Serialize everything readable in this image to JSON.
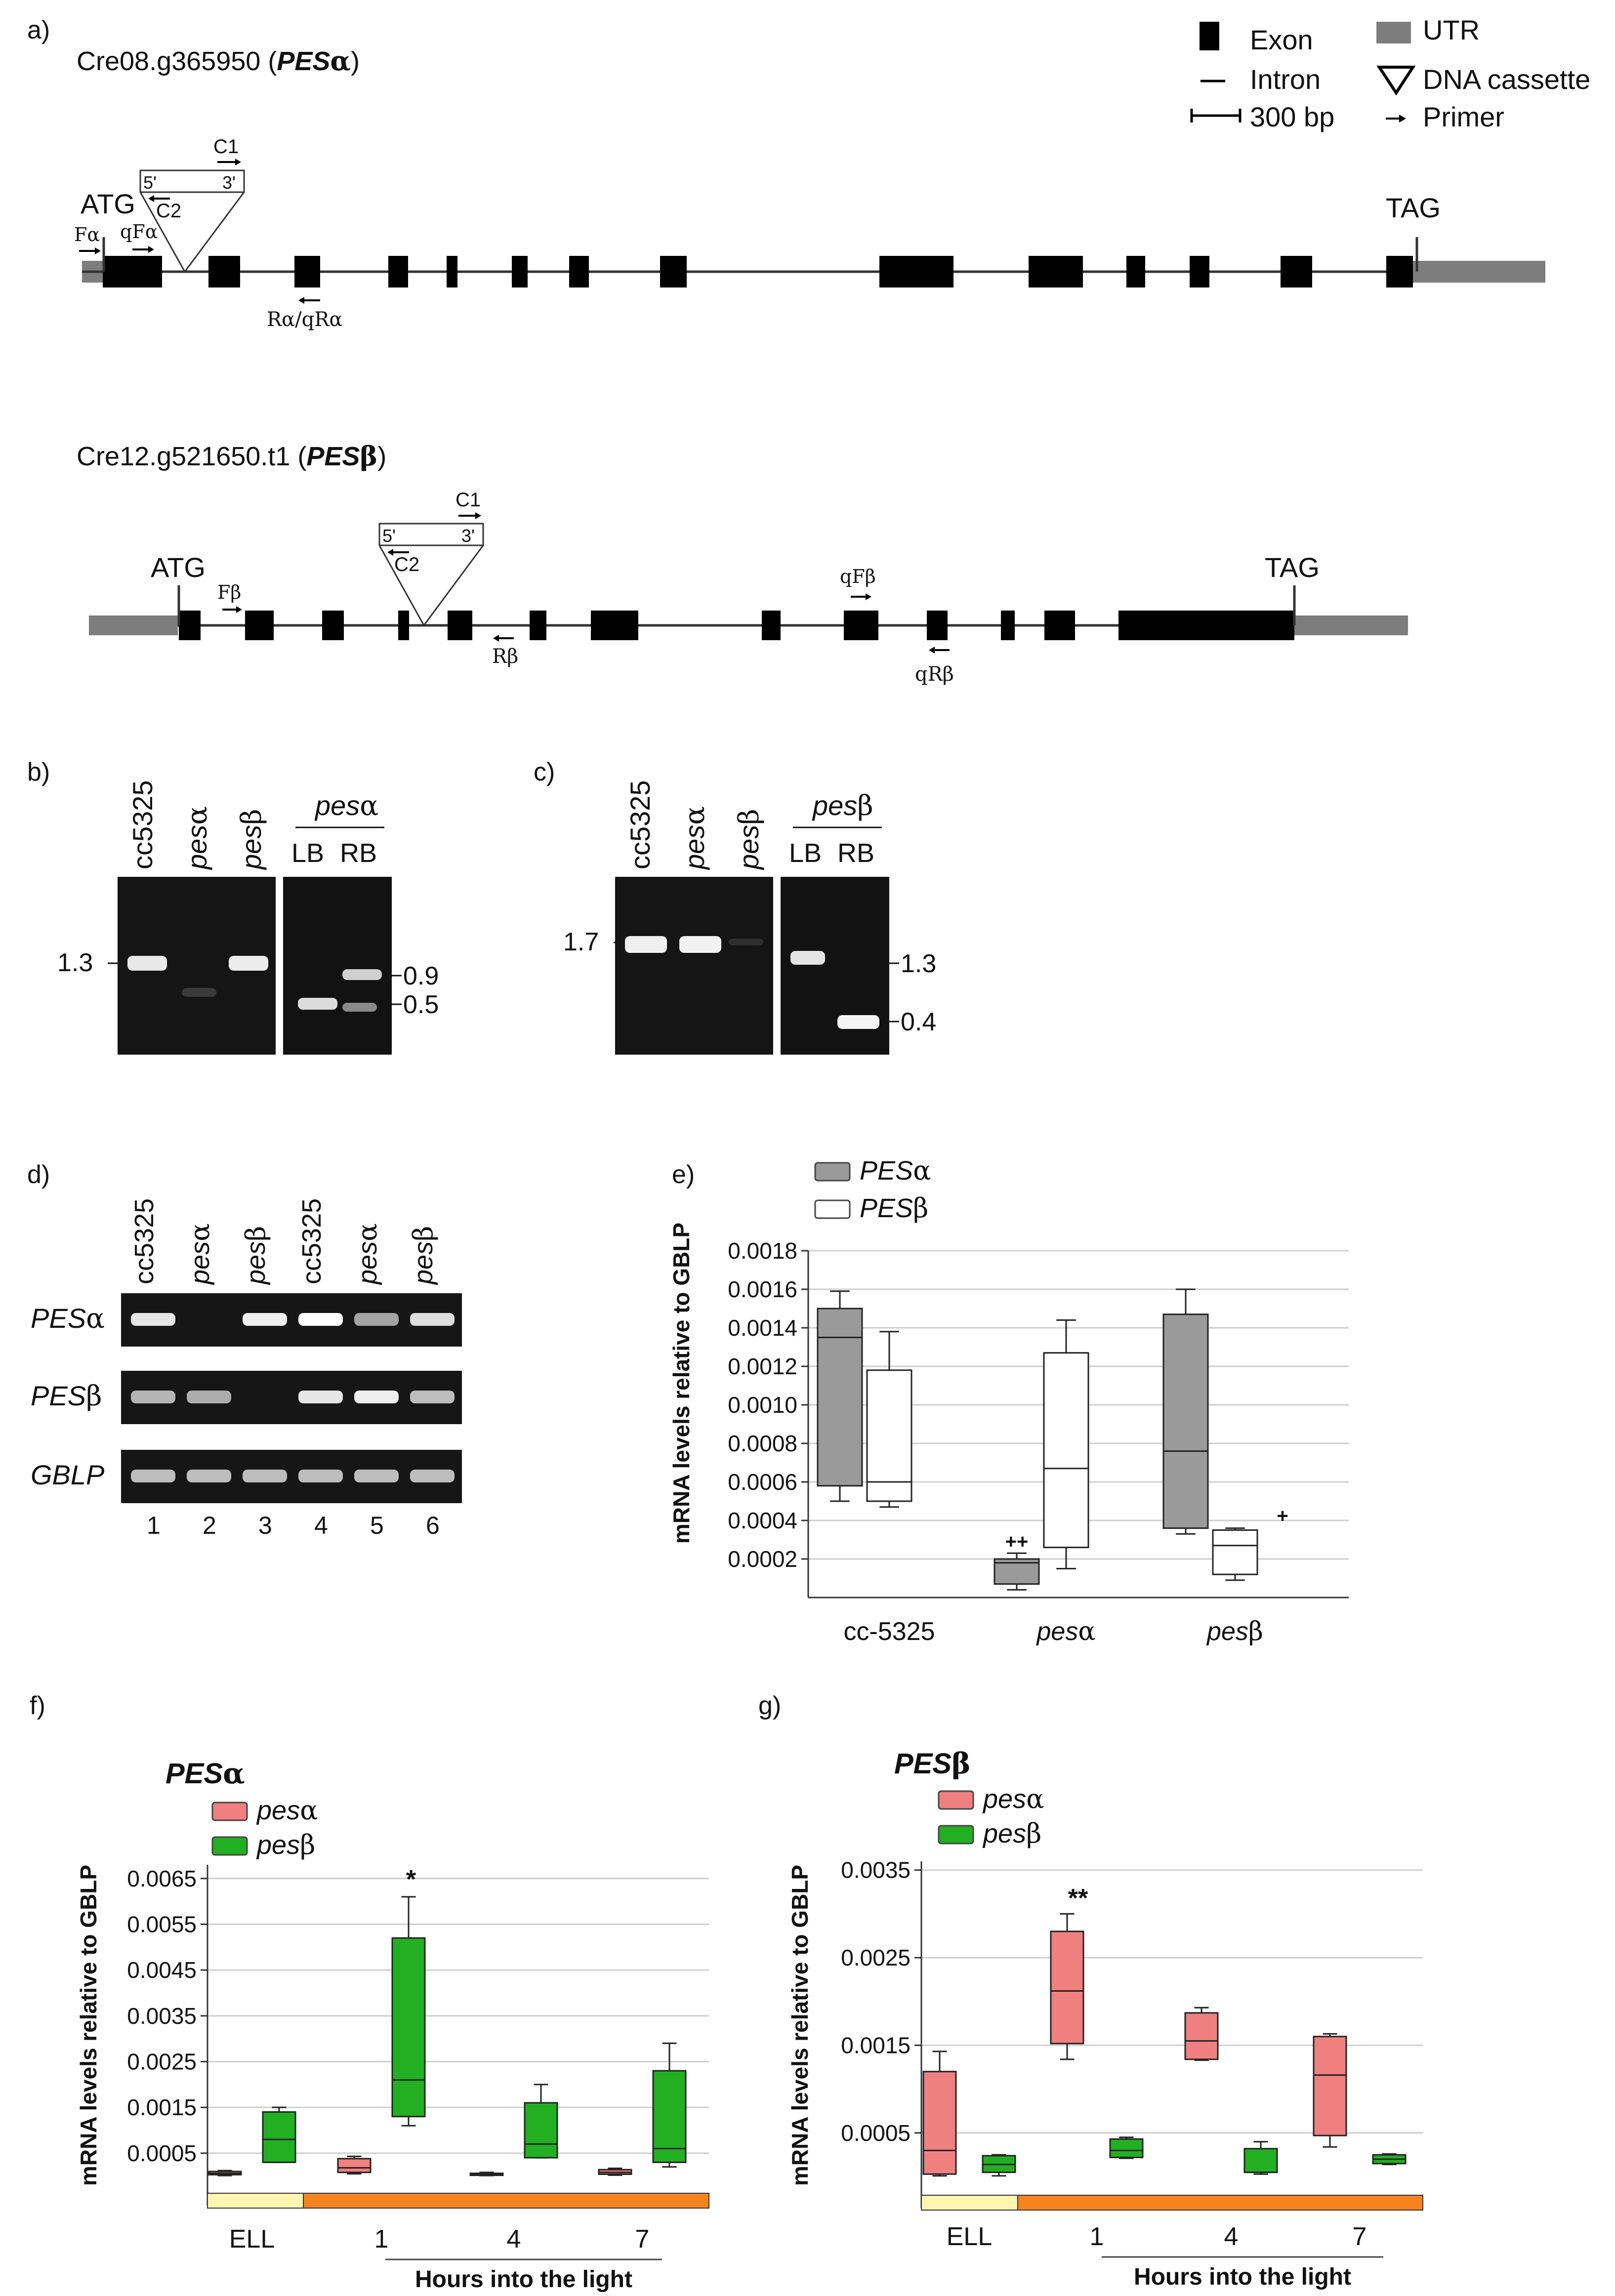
{
  "panels": {
    "a": "a)",
    "b": "b)",
    "c": "c)",
    "d": "d)",
    "e": "e)",
    "f": "f)",
    "g": "g)"
  },
  "legend_a": {
    "exon": "Exon",
    "intron": "Intron",
    "scale": "300 bp",
    "utr": "UTR",
    "cassette": "DNA cassette",
    "primer": "Primer"
  },
  "gene_alpha": {
    "id": "Cre08.g365950",
    "name": "PES",
    "greek": "α",
    "atg": "ATG",
    "tag": "TAG",
    "c1": "C1",
    "c2": "C2",
    "five": "5'",
    "three": "3'",
    "f": "Fα",
    "qf": "qFα",
    "r": "Rα/qRα"
  },
  "gene_beta": {
    "id": "Cre12.g521650.t1",
    "name": "PES",
    "greek": "β",
    "atg": "ATG",
    "tag": "TAG",
    "c1": "C1",
    "c2": "C2",
    "five": "5'",
    "three": "3'",
    "f": "Fβ",
    "r": "Rβ",
    "qf": "qFβ",
    "qr": "qRβ"
  },
  "gel_b": {
    "lanes": [
      "cc5325",
      "pesα",
      "pesβ"
    ],
    "group": "pesα",
    "lb": "LB",
    "rb": "RB",
    "marker_left": "1.3",
    "marker_r1": "0.9",
    "marker_r2": "0.5"
  },
  "gel_c": {
    "lanes": [
      "cc5325",
      "pesα",
      "pesβ"
    ],
    "group": "pesβ",
    "lb": "LB",
    "rb": "RB",
    "marker_left": "1.7",
    "marker_r1": "1.3",
    "marker_r2": "0.4"
  },
  "gel_d": {
    "lanes": [
      "cc5325",
      "pesα",
      "pesβ",
      "cc5325",
      "pesα",
      "pesβ"
    ],
    "rows": [
      "PESα",
      "PESβ",
      "GBLP"
    ],
    "numbers": [
      "1",
      "2",
      "3",
      "4",
      "5",
      "6"
    ]
  },
  "chart_e": {
    "type": "box",
    "ylabel": "mRNA levels relative to GBLP",
    "yticks": [
      "0.0002",
      "0.0004",
      "0.0006",
      "0.0008",
      "0.0010",
      "0.0012",
      "0.0014",
      "0.0016",
      "0.0018"
    ],
    "ylim": [
      0,
      0.0018
    ],
    "categories": [
      "cc-5325",
      "pesα",
      "pesβ"
    ],
    "series": [
      {
        "name": "PESα",
        "color": "#9a9a9a",
        "boxes": [
          {
            "min": 0.0005,
            "q1": 0.00058,
            "median": 0.00135,
            "q3": 0.0015,
            "max": 0.00159
          },
          {
            "min": 4e-05,
            "q1": 7e-05,
            "median": 0.00018,
            "q3": 0.0002,
            "max": 0.00023
          },
          {
            "min": 0.00033,
            "q1": 0.00036,
            "median": 0.00076,
            "q3": 0.00147,
            "max": 0.0016
          }
        ]
      },
      {
        "name": "PESβ",
        "color": "#ffffff",
        "boxes": [
          {
            "min": 0.00047,
            "q1": 0.0005,
            "median": 0.0006,
            "q3": 0.00118,
            "max": 0.00138
          },
          {
            "min": 0.00015,
            "q1": 0.00026,
            "median": 0.00067,
            "q3": 0.00127,
            "max": 0.00144
          },
          {
            "min": 9e-05,
            "q1": 0.00012,
            "median": 0.00027,
            "q3": 0.00035,
            "max": 0.00036
          }
        ]
      }
    ],
    "annotations": [
      "++",
      "+"
    ]
  },
  "chart_f": {
    "type": "box",
    "title": "PESα",
    "ylabel": "mRNA levels relative to GBLP",
    "xlabel": "Hours into the light",
    "yticks": [
      "0.0005",
      "0.0015",
      "0.0025",
      "0.0035",
      "0.0045",
      "0.0055",
      "0.0065"
    ],
    "ylim": [
      -0.0003,
      0.0068
    ],
    "categories": [
      "ELL",
      "1",
      "4",
      "7"
    ],
    "series": [
      {
        "name": "pesα",
        "color": "#f08080",
        "boxes": [
          {
            "min": 1e-05,
            "q1": 3e-05,
            "median": 6e-05,
            "q3": 0.0001,
            "max": 0.00012
          },
          {
            "min": 5e-05,
            "q1": 8e-05,
            "median": 0.00018,
            "q3": 0.00038,
            "max": 0.00043
          },
          {
            "min": 1e-05,
            "q1": 2e-05,
            "median": 4e-05,
            "q3": 6e-05,
            "max": 8e-05
          },
          {
            "min": 2e-05,
            "q1": 4e-05,
            "median": 8e-05,
            "q3": 0.00014,
            "max": 0.00017
          }
        ]
      },
      {
        "name": "pesβ",
        "color": "#22b022",
        "boxes": [
          {
            "min": 0.0003,
            "q1": 0.0003,
            "median": 0.0008,
            "q3": 0.0014,
            "max": 0.0015
          },
          {
            "min": 0.0011,
            "q1": 0.0013,
            "median": 0.0021,
            "q3": 0.0052,
            "max": 0.0061
          },
          {
            "min": 0.0004,
            "q1": 0.0004,
            "median": 0.0007,
            "q3": 0.0016,
            "max": 0.002
          },
          {
            "min": 0.0002,
            "q1": 0.0003,
            "median": 0.0006,
            "q3": 0.0023,
            "max": 0.0029
          }
        ]
      }
    ],
    "annotations": [
      "*"
    ]
  },
  "chart_g": {
    "type": "box",
    "title": "PESβ",
    "ylabel": "mRNA levels relative to GBLP",
    "xlabel": "Hours into the light",
    "yticks": [
      "0.0005",
      "0.0015",
      "0.0025",
      "0.0035"
    ],
    "ylim": [
      -0.0002,
      0.0036
    ],
    "categories": [
      "ELL",
      "1",
      "4",
      "7"
    ],
    "series": [
      {
        "name": "pesα",
        "color": "#f08080",
        "boxes": [
          {
            "min": 1e-05,
            "q1": 3e-05,
            "median": 0.0003,
            "q3": 0.0012,
            "max": 0.00143
          },
          {
            "min": 0.00134,
            "q1": 0.00152,
            "median": 0.00212,
            "q3": 0.0028,
            "max": 0.003
          },
          {
            "min": 0.00133,
            "q1": 0.00134,
            "median": 0.00155,
            "q3": 0.00187,
            "max": 0.00193
          },
          {
            "min": 0.00034,
            "q1": 0.00047,
            "median": 0.00116,
            "q3": 0.0016,
            "max": 0.00163
          }
        ]
      },
      {
        "name": "pesβ",
        "color": "#22b022",
        "boxes": [
          {
            "min": 1e-05,
            "q1": 5e-05,
            "median": 0.00014,
            "q3": 0.00024,
            "max": 0.00025
          },
          {
            "min": 0.00021,
            "q1": 0.00022,
            "median": 0.0003,
            "q3": 0.00043,
            "max": 0.00045
          },
          {
            "min": 3e-05,
            "q1": 5e-05,
            "median": 5e-05,
            "q3": 0.00032,
            "max": 0.0004
          },
          {
            "min": 0.00014,
            "q1": 0.00015,
            "median": 0.0002,
            "q3": 0.00025,
            "max": 0.00026
          }
        ]
      }
    ],
    "annotations": [
      "**"
    ]
  }
}
